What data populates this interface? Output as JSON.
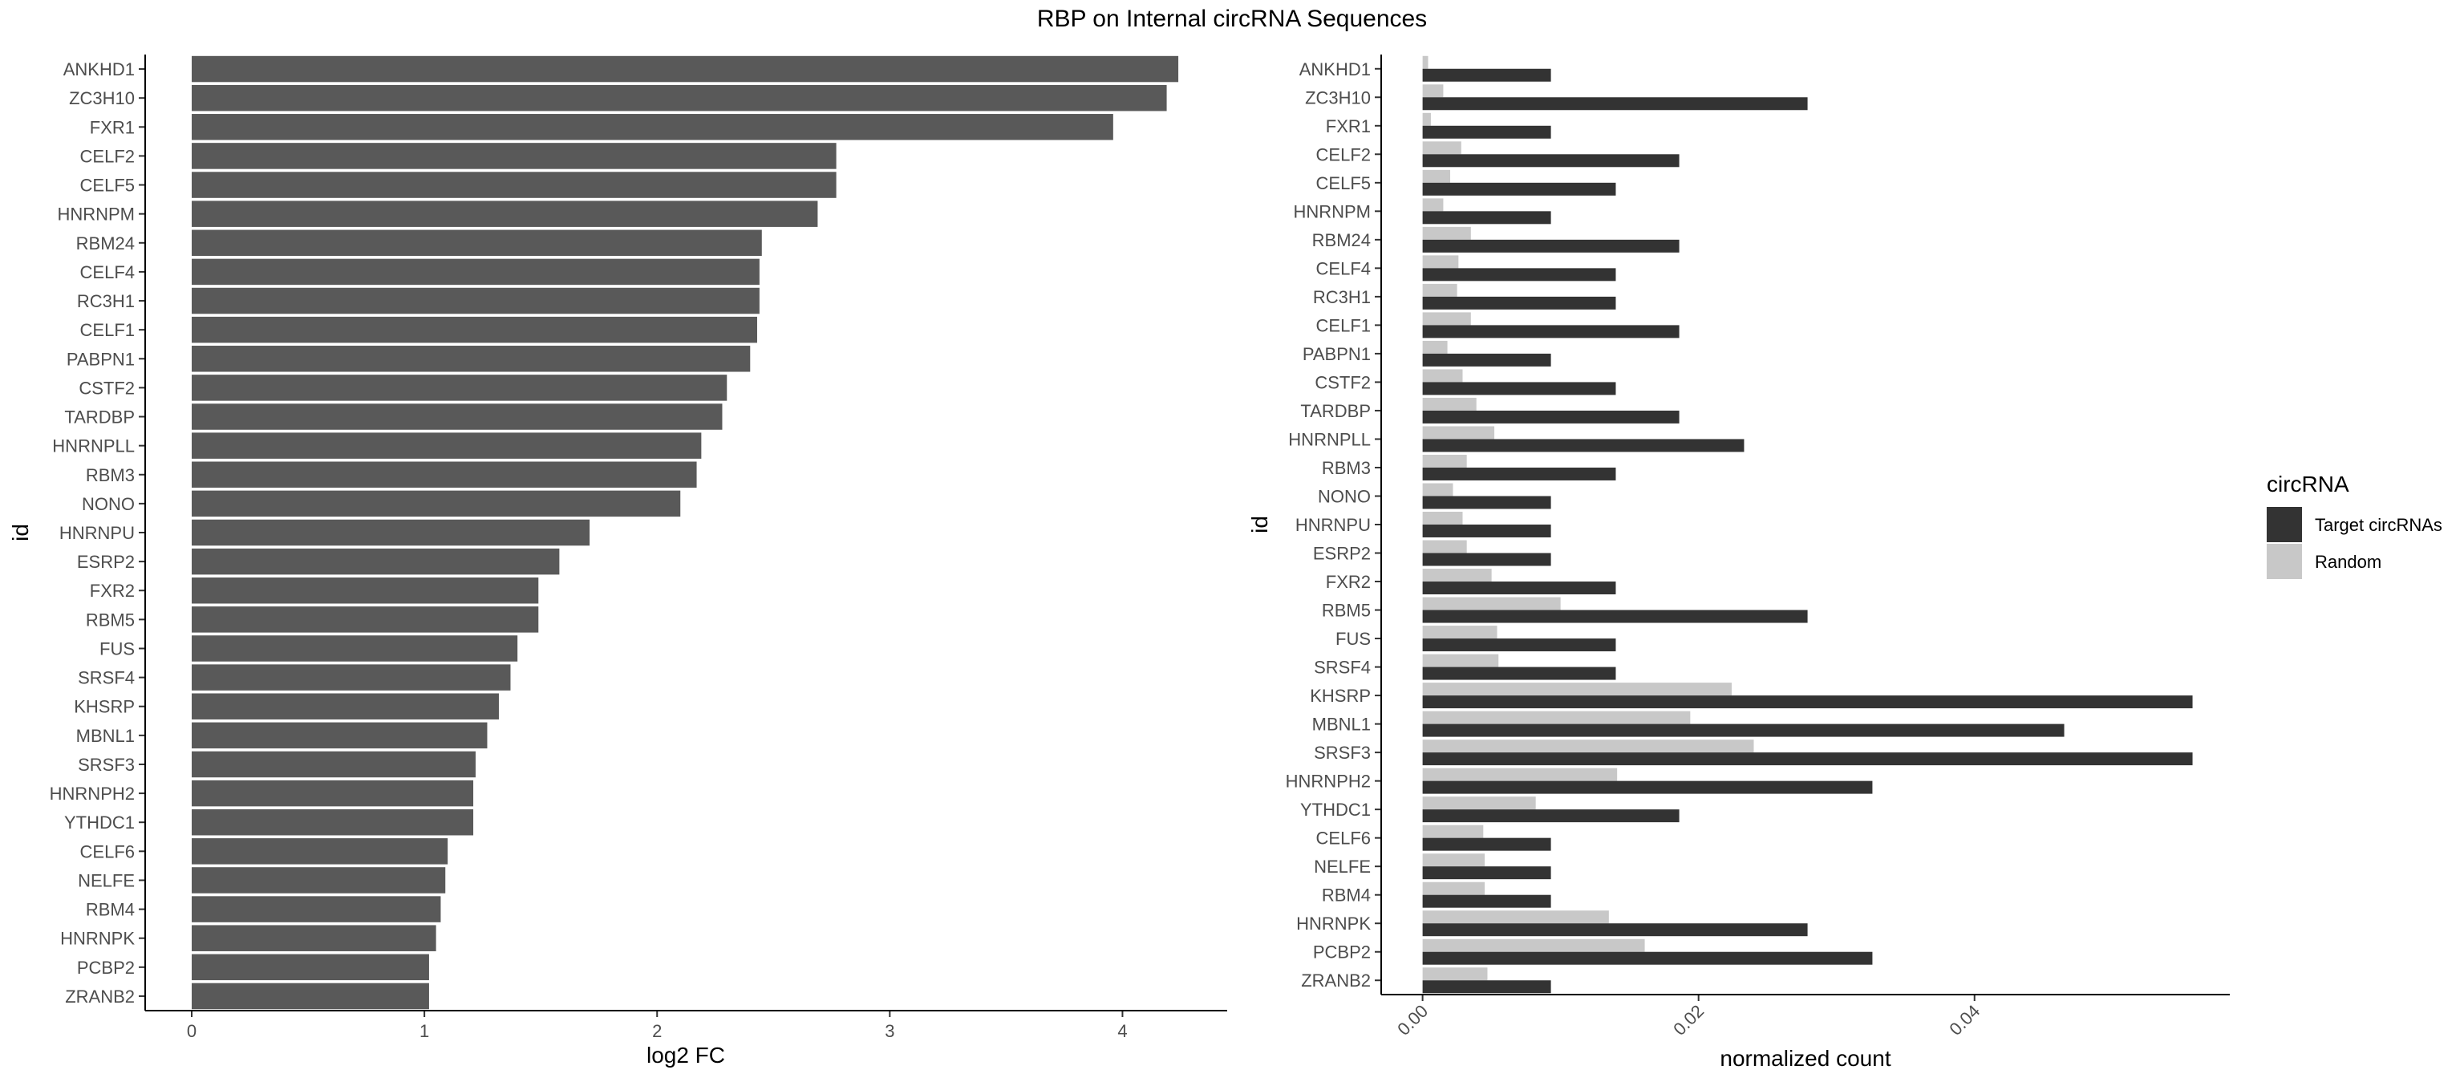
{
  "figure": {
    "title": "RBP on Internal circRNA Sequences"
  },
  "chart_data": [
    {
      "type": "bar",
      "orientation": "horizontal",
      "categories": [
        "ANKHD1",
        "ZC3H10",
        "FXR1",
        "CELF2",
        "CELF5",
        "HNRNPM",
        "RBM24",
        "CELF4",
        "RC3H1",
        "CELF1",
        "PABPN1",
        "CSTF2",
        "TARDBP",
        "HNRNPLL",
        "RBM3",
        "NONO",
        "HNRNPU",
        "ESRP2",
        "FXR2",
        "RBM5",
        "FUS",
        "SRSF4",
        "KHSRP",
        "MBNL1",
        "SRSF3",
        "HNRNPH2",
        "YTHDC1",
        "CELF6",
        "NELFE",
        "RBM4",
        "HNRNPK",
        "PCBP2",
        "ZRANB2"
      ],
      "values": [
        4.24,
        4.19,
        3.96,
        2.77,
        2.77,
        2.69,
        2.45,
        2.44,
        2.44,
        2.43,
        2.4,
        2.3,
        2.28,
        2.19,
        2.17,
        2.1,
        1.71,
        1.58,
        1.49,
        1.49,
        1.4,
        1.37,
        1.32,
        1.27,
        1.22,
        1.21,
        1.21,
        1.1,
        1.09,
        1.07,
        1.05,
        1.02,
        1.02
      ],
      "xlabel": "log2 FC",
      "ylabel": "id",
      "xlim": [
        -0.2,
        4.45
      ],
      "xticks": [
        0,
        1,
        2,
        3,
        4
      ],
      "bar_color": "#595959",
      "grid": false
    },
    {
      "type": "bar",
      "orientation": "horizontal",
      "grouped": true,
      "categories": [
        "ANKHD1",
        "ZC3H10",
        "FXR1",
        "CELF2",
        "CELF5",
        "HNRNPM",
        "RBM24",
        "CELF4",
        "RC3H1",
        "CELF1",
        "PABPN1",
        "CSTF2",
        "TARDBP",
        "HNRNPLL",
        "RBM3",
        "NONO",
        "HNRNPU",
        "ESRP2",
        "FXR2",
        "RBM5",
        "FUS",
        "SRSF4",
        "KHSRP",
        "MBNL1",
        "SRSF3",
        "HNRNPH2",
        "YTHDC1",
        "CELF6",
        "NELFE",
        "RBM4",
        "HNRNPK",
        "PCBP2",
        "ZRANB2"
      ],
      "series": [
        {
          "name": "Target circRNAs",
          "color": "#333333",
          "values": [
            0.0093,
            0.0279,
            0.0093,
            0.0186,
            0.014,
            0.0093,
            0.0186,
            0.014,
            0.014,
            0.0186,
            0.0093,
            0.014,
            0.0186,
            0.0233,
            0.014,
            0.0093,
            0.0093,
            0.0093,
            0.014,
            0.0279,
            0.014,
            0.014,
            0.0558,
            0.0465,
            0.0558,
            0.0326,
            0.0186,
            0.0093,
            0.0093,
            0.0093,
            0.0279,
            0.0326,
            0.0093
          ]
        },
        {
          "name": "Random",
          "color": "#c8c8c8",
          "values": [
            0.0004,
            0.0015,
            0.0006,
            0.0028,
            0.002,
            0.0015,
            0.0035,
            0.0026,
            0.0025,
            0.0035,
            0.0018,
            0.0029,
            0.0039,
            0.0052,
            0.0032,
            0.0022,
            0.0029,
            0.0032,
            0.005,
            0.01,
            0.0054,
            0.0055,
            0.0224,
            0.0194,
            0.024,
            0.0141,
            0.0082,
            0.0044,
            0.0045,
            0.0045,
            0.0135,
            0.0161,
            0.0047
          ]
        }
      ],
      "xlabel": "normalized count",
      "ylabel": "id",
      "xlim": [
        -0.003,
        0.0585
      ],
      "xticks": [
        0.0,
        0.02,
        0.04
      ],
      "xtick_labels": [
        "0.00",
        "0.02",
        "0.04"
      ],
      "legend": {
        "title": "circRNA",
        "position": "right"
      },
      "grid": false
    }
  ]
}
